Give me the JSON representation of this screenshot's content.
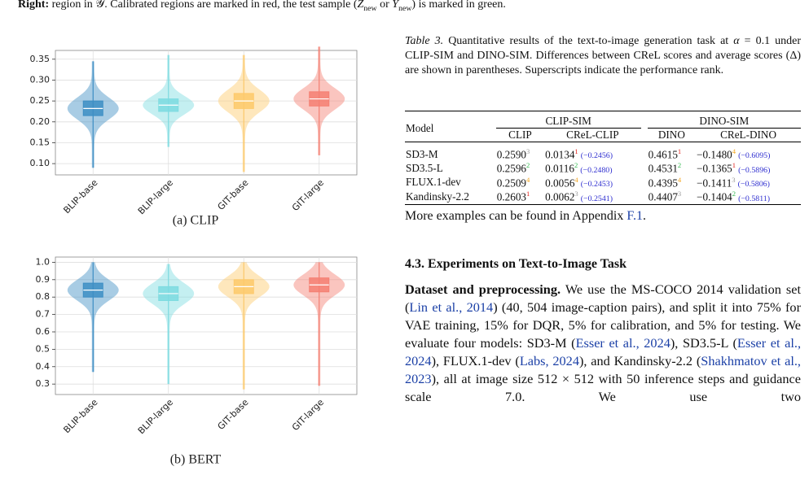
{
  "top_caption": {
    "segments": [
      {
        "text": "Right:",
        "style": "b"
      },
      {
        "text": " region in 𝒴. Calibrated regions are marked in red, the test sample ("
      },
      {
        "text": "Z",
        "style": "i"
      },
      {
        "text": "new",
        "style": "sub"
      },
      {
        "text": " or "
      },
      {
        "text": "Y",
        "style": "i"
      },
      {
        "text": "new",
        "style": "sub"
      },
      {
        "text": ") is marked in green."
      }
    ]
  },
  "chart_data": [
    {
      "type": "violin",
      "caption": "(a) CLIP",
      "categories": [
        "BLIP-base",
        "BLIP-large",
        "GIT-base",
        "GIT-large"
      ],
      "colors": [
        "#3d8ec4",
        "#7ddbe0",
        "#fdc96a",
        "#f47f72"
      ],
      "boxes": [
        {
          "min": 0.09,
          "q1": 0.215,
          "median": 0.232,
          "q3": 0.25,
          "max": 0.345
        },
        {
          "min": 0.14,
          "q1": 0.225,
          "median": 0.24,
          "q3": 0.255,
          "max": 0.36
        },
        {
          "min": 0.08,
          "q1": 0.232,
          "median": 0.25,
          "q3": 0.268,
          "max": 0.36
        },
        {
          "min": 0.12,
          "q1": 0.238,
          "median": 0.255,
          "q3": 0.272,
          "max": 0.38
        }
      ],
      "ylim": [
        0.073,
        0.371
      ],
      "yticks": [
        {
          "value": 0.1,
          "label": "0.10"
        },
        0.15,
        {
          "value": 0.2,
          "label": "0.20"
        },
        0.25,
        {
          "value": 0.3,
          "label": "0.30"
        },
        0.35
      ],
      "grid": true
    },
    {
      "type": "violin",
      "caption": "(b) BERT",
      "categories": [
        "BLIP-base",
        "BLIP-large",
        "GIT-base",
        "GIT-large"
      ],
      "colors": [
        "#3d8ec4",
        "#7ddbe0",
        "#fdc96a",
        "#f47f72"
      ],
      "boxes": [
        {
          "min": 0.37,
          "q1": 0.8,
          "median": 0.84,
          "q3": 0.88,
          "max": 1.0
        },
        {
          "min": 0.3,
          "q1": 0.78,
          "median": 0.82,
          "q3": 0.86,
          "max": 0.99
        },
        {
          "min": 0.27,
          "q1": 0.82,
          "median": 0.86,
          "q3": 0.9,
          "max": 1.0
        },
        {
          "min": 0.29,
          "q1": 0.83,
          "median": 0.87,
          "q3": 0.91,
          "max": 1.0
        }
      ],
      "ylim": [
        0.24,
        1.03
      ],
      "yticks": [
        0.3,
        0.4,
        0.5,
        0.6,
        0.7,
        0.8,
        0.9,
        {
          "value": 1.0,
          "label": "1.0"
        }
      ],
      "grid": true
    }
  ],
  "table_caption": {
    "segments": [
      {
        "text": "Table 3.",
        "style": "i"
      },
      {
        "text": "  Quantitative results of the text-to-image generation task at "
      },
      {
        "text": "α",
        "style": "i"
      },
      {
        "text": " = 0.1 under CLIP-SIM and DINO-SIM. Differences between CReL scores and average scores (Δ) are shown in parentheses. Superscripts indicate the performance rank."
      }
    ]
  },
  "table": {
    "model_header": "Model",
    "groups": [
      "CLIP-SIM",
      "DINO-SIM"
    ],
    "columns": [
      "CLIP",
      "CReL-CLIP",
      "DINO",
      "CReL-DINO"
    ],
    "rank_colors": {
      "1": "#e3241c",
      "2": "#2eb84b",
      "3": "#9a9a9a",
      "4": "#f2a31b"
    },
    "diff_color": "#2f2fd0",
    "rows": [
      {
        "model": "SD3-M",
        "cells": [
          {
            "value": "0.2590",
            "rank": "3"
          },
          {
            "value": "0.0134",
            "rank": "1",
            "diff": "(−0.2456)"
          },
          {
            "value": "0.4615",
            "rank": "1"
          },
          {
            "value": "−0.1480",
            "rank": "4",
            "diff": "(−0.6095)"
          }
        ]
      },
      {
        "model": "SD3.5-L",
        "cells": [
          {
            "value": "0.2596",
            "rank": "2"
          },
          {
            "value": "0.0116",
            "rank": "2",
            "diff": "(−0.2480)"
          },
          {
            "value": "0.4531",
            "rank": "2"
          },
          {
            "value": "−0.1365",
            "rank": "1",
            "diff": "(−0.5896)"
          }
        ]
      },
      {
        "model": "FLUX.1-dev",
        "cells": [
          {
            "value": "0.2509",
            "rank": "4"
          },
          {
            "value": "0.0056",
            "rank": "4",
            "diff": "(−0.2453)"
          },
          {
            "value": "0.4395",
            "rank": "4"
          },
          {
            "value": "−0.1411",
            "rank": "3",
            "diff": "(−0.5806)"
          }
        ]
      },
      {
        "model": "Kandinsky-2.2",
        "cells": [
          {
            "value": "0.2603",
            "rank": "1"
          },
          {
            "value": "0.0062",
            "rank": "3",
            "diff": "(−0.2541)"
          },
          {
            "value": "0.4407",
            "rank": "3"
          },
          {
            "value": "−0.1404",
            "rank": "2",
            "diff": "(−0.5811)"
          }
        ]
      }
    ]
  },
  "note": {
    "segments": [
      {
        "text": "More examples can be found in Appendix "
      },
      {
        "text": "F.1",
        "style": "link"
      },
      {
        "text": "."
      }
    ]
  },
  "section_heading": "4.3. Experiments on Text-to-Image Task",
  "paragraph": {
    "segments": [
      {
        "text": "Dataset and preprocessing.",
        "style": "b"
      },
      {
        "text": " We use the MS-COCO 2014 validation set ("
      },
      {
        "text": "Lin et al., 2014",
        "style": "link"
      },
      {
        "text": ") (40, 504 image-caption pairs), and split it into 75% for VAE training, 15% for DQR, 5% for calibration, and 5% for testing. We evaluate four models: SD3-M ("
      },
      {
        "text": "Esser et al., 2024",
        "style": "link"
      },
      {
        "text": "), SD3.5-L ("
      },
      {
        "text": "Esser et al., 2024",
        "style": "link"
      },
      {
        "text": "), FLUX.1-dev ("
      },
      {
        "text": "Labs, 2024",
        "style": "link"
      },
      {
        "text": "), and Kandinsky-2.2 ("
      },
      {
        "text": "Shakhmatov et al., 2023",
        "style": "link"
      },
      {
        "text": "), all at image size 512 × 512 with 50 inference steps and guidance scale 7.0. We use two"
      }
    ]
  }
}
